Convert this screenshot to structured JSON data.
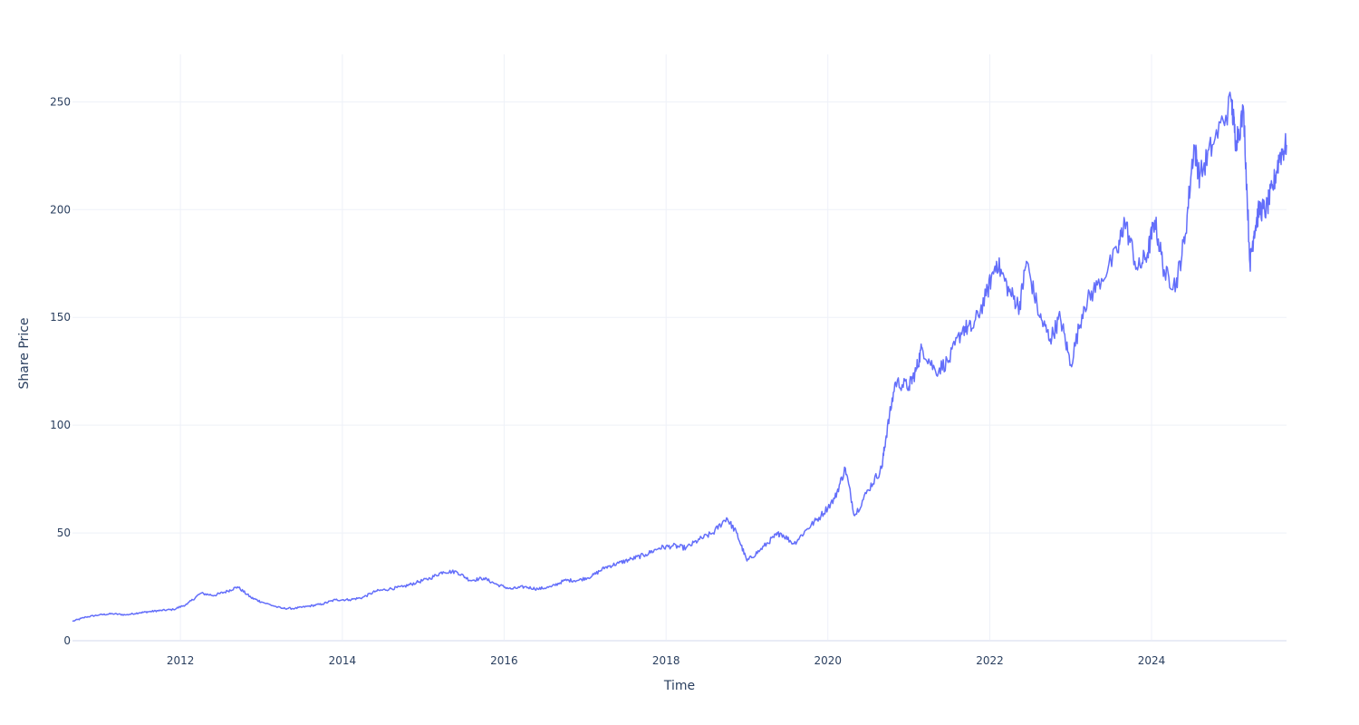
{
  "colors": {
    "line": "#636efa",
    "background": "#ffffff",
    "grid": "#eef1f8",
    "text": "#2a3f5f"
  },
  "chart_data": {
    "type": "line",
    "title": "",
    "xlabel": "Time",
    "ylabel": "Share Price",
    "xlim": [
      "2010-09-01",
      "2025-09-01"
    ],
    "ylim": [
      0,
      272
    ],
    "grid": true,
    "legend": "none",
    "x_ticks": [
      "2012",
      "2014",
      "2016",
      "2018",
      "2020",
      "2022",
      "2024"
    ],
    "y_ticks": [
      "0",
      "50",
      "100",
      "150",
      "200",
      "250"
    ],
    "series": [
      {
        "x": [
          "2010-09-01",
          "2010-11-01",
          "2011-01-01",
          "2011-03-01",
          "2011-05-01",
          "2011-07-01",
          "2011-08-15",
          "2011-10-01",
          "2011-12-01",
          "2012-02-01",
          "2012-04-01",
          "2012-06-01",
          "2012-08-01",
          "2012-09-15",
          "2012-11-15",
          "2013-01-01",
          "2013-04-01",
          "2013-06-01",
          "2013-08-01",
          "2013-10-01",
          "2013-12-01",
          "2014-02-01",
          "2014-04-01",
          "2014-06-01",
          "2014-08-01",
          "2014-10-01",
          "2014-12-01",
          "2015-02-01",
          "2015-04-01",
          "2015-06-01",
          "2015-08-01",
          "2015-10-01",
          "2015-12-01",
          "2016-02-01",
          "2016-04-01",
          "2016-06-01",
          "2016-08-01",
          "2016-10-01",
          "2016-12-01",
          "2017-02-01",
          "2017-04-01",
          "2017-06-01",
          "2017-08-01",
          "2017-10-01",
          "2017-12-01",
          "2018-02-01",
          "2018-04-01",
          "2018-06-01",
          "2018-08-01",
          "2018-10-01",
          "2018-11-15",
          "2019-01-01",
          "2019-03-01",
          "2019-05-01",
          "2019-06-01",
          "2019-08-01",
          "2019-10-01",
          "2019-12-01",
          "2020-02-01",
          "2020-03-20",
          "2020-05-01",
          "2020-07-01",
          "2020-08-31",
          "2020-09-20",
          "2020-11-01",
          "2021-01-01",
          "2021-02-01",
          "2021-03-01",
          "2021-05-01",
          "2021-07-01",
          "2021-09-01",
          "2021-10-15",
          "2021-12-15",
          "2022-01-31",
          "2022-03-30",
          "2022-05-15",
          "2022-06-15",
          "2022-08-15",
          "2022-10-01",
          "2022-11-15",
          "2023-01-01",
          "2023-03-01",
          "2023-05-01",
          "2023-07-31",
          "2023-09-01",
          "2023-10-30",
          "2023-12-15",
          "2024-01-15",
          "2024-03-01",
          "2024-04-20",
          "2024-06-01",
          "2024-07-10",
          "2024-08-05",
          "2024-10-01",
          "2024-12-26",
          "2025-01-15",
          "2025-02-20",
          "2025-03-20",
          "2025-04-08",
          "2025-05-01",
          "2025-06-01",
          "2025-07-01",
          "2025-08-01",
          "2025-09-01"
        ],
        "y": [
          9,
          11,
          12,
          12.5,
          12,
          13,
          13.5,
          14,
          14.5,
          17,
          22,
          21,
          23,
          25,
          20,
          18,
          15,
          15,
          16,
          17,
          19,
          19,
          20,
          23,
          24,
          25,
          27,
          29,
          32,
          32,
          28,
          29,
          26,
          24,
          25,
          24,
          25,
          28,
          28,
          30,
          34,
          36,
          38,
          40,
          43,
          44,
          43,
          47,
          50,
          57,
          50,
          37,
          42,
          48,
          50,
          45,
          52,
          58,
          66,
          80,
          58,
          70,
          80,
          95,
          120,
          118,
          125,
          136,
          125,
          130,
          145,
          145,
          160,
          176,
          162,
          155,
          176,
          150,
          140,
          150,
          128,
          155,
          165,
          180,
          195,
          172,
          180,
          195,
          170,
          165,
          188,
          230,
          215,
          230,
          250,
          232,
          245,
          175,
          190,
          200,
          200,
          210,
          225,
          230
        ]
      }
    ]
  }
}
